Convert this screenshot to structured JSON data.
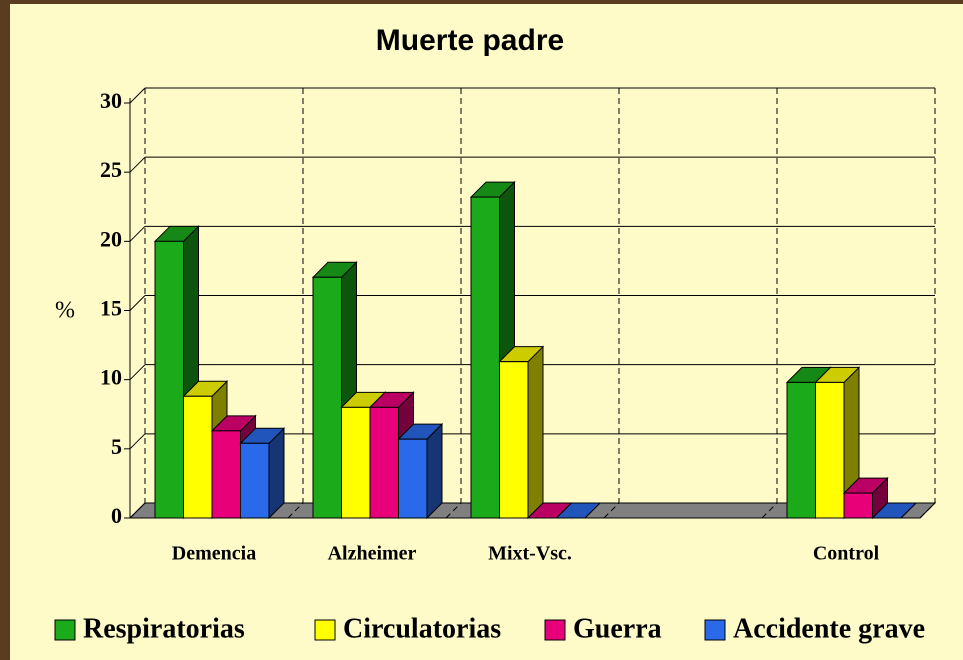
{
  "chart_data": {
    "type": "bar3d",
    "title": "Muerte   padre",
    "y_label": "%",
    "categories": [
      "Demencia",
      "Alzheimer",
      "Mixt-Vsc.",
      null,
      "Control"
    ],
    "series": [
      {
        "name": "Respiratorias",
        "color": "#1aaa1a",
        "values": [
          20,
          17.4,
          23.2,
          null,
          9.8
        ]
      },
      {
        "name": "Circulatorias",
        "color": "#ffff00",
        "values": [
          8.8,
          8,
          11.3,
          null,
          9.8
        ]
      },
      {
        "name": "Guerra",
        "color": "#e8007a",
        "values": [
          6.3,
          8,
          0,
          null,
          1.8
        ]
      },
      {
        "name": "Accidente grave",
        "color": "#2a6aea",
        "values": [
          5.4,
          5.7,
          0,
          null,
          0
        ]
      }
    ],
    "ylim": [
      0,
      30
    ],
    "yticks": [
      0,
      5,
      10,
      15,
      20,
      25,
      30
    ],
    "grid": true
  }
}
